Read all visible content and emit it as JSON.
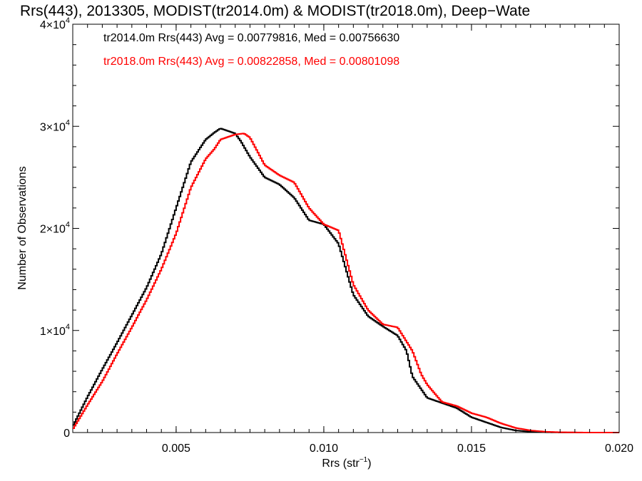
{
  "chart_data": {
    "type": "line",
    "title": "Rrs(443), 2013305, MODIST(tr2014.0m) & MODIST(tr2018.0m), Deep−Wate",
    "xlabel_main": "Rrs (str",
    "xlabel_sup": "−1",
    "xlabel_end": ")",
    "ylabel": "Number of Observations",
    "xlim": [
      0.0015,
      0.02
    ],
    "ylim": [
      0,
      40000
    ],
    "x_ticks": [
      {
        "value": 0.005,
        "label": "0.005"
      },
      {
        "value": 0.01,
        "label": "0.010"
      },
      {
        "value": 0.015,
        "label": "0.015"
      },
      {
        "value": 0.02,
        "label": "0.020"
      }
    ],
    "y_ticks": [
      {
        "value": 0,
        "mant": "0",
        "exp": ""
      },
      {
        "value": 10000,
        "mant": "1×10",
        "exp": "4"
      },
      {
        "value": 20000,
        "mant": "2×10",
        "exp": "4"
      },
      {
        "value": 30000,
        "mant": "3×10",
        "exp": "4"
      },
      {
        "value": 40000,
        "mant": "4×10",
        "exp": "4"
      }
    ],
    "annotations": [
      {
        "text": "tr2014.0m Rrs(443) Avg = 0.00779816, Med = 0.00756630",
        "color": "#000000"
      },
      {
        "text": "tr2018.0m Rrs(443) Avg = 0.00822858, Med = 0.00801098",
        "color": "#ff0000"
      }
    ],
    "series": [
      {
        "color": "#000000",
        "x": [
          0.0015,
          0.002,
          0.0025,
          0.003,
          0.0035,
          0.004,
          0.0045,
          0.005,
          0.0055,
          0.006,
          0.0063,
          0.0065,
          0.0068,
          0.007,
          0.0072,
          0.0075,
          0.008,
          0.0085,
          0.009,
          0.0095,
          0.01,
          0.0105,
          0.011,
          0.0115,
          0.012,
          0.0125,
          0.0128,
          0.013,
          0.0135,
          0.014,
          0.0145,
          0.015,
          0.0155,
          0.016,
          0.0165,
          0.017,
          0.0175,
          0.018,
          0.0185,
          0.019,
          0.02
        ],
        "y": [
          600,
          3500,
          6200,
          8800,
          11500,
          14200,
          17500,
          22000,
          26500,
          28700,
          29400,
          29800,
          29500,
          29300,
          28500,
          27000,
          25000,
          24300,
          23000,
          20800,
          20400,
          18500,
          13500,
          11400,
          10400,
          9500,
          8000,
          5500,
          3400,
          2900,
          2400,
          1500,
          1000,
          500,
          200,
          80,
          30,
          10,
          5,
          0,
          0
        ]
      },
      {
        "color": "#ff0000",
        "x": [
          0.0015,
          0.002,
          0.0025,
          0.003,
          0.0035,
          0.004,
          0.0045,
          0.005,
          0.0055,
          0.006,
          0.0063,
          0.0065,
          0.0068,
          0.007,
          0.0073,
          0.0075,
          0.008,
          0.0085,
          0.009,
          0.0095,
          0.01,
          0.0105,
          0.011,
          0.0115,
          0.012,
          0.0125,
          0.013,
          0.0133,
          0.0135,
          0.014,
          0.0145,
          0.015,
          0.0155,
          0.016,
          0.0165,
          0.017,
          0.0175,
          0.018,
          0.0185,
          0.019,
          0.02
        ],
        "y": [
          300,
          2700,
          5000,
          7700,
          10300,
          13000,
          16000,
          19500,
          24000,
          26800,
          27800,
          28700,
          29000,
          29200,
          29300,
          28900,
          26200,
          25200,
          24500,
          22000,
          20400,
          19800,
          14500,
          12000,
          10600,
          10300,
          8000,
          5700,
          4700,
          3000,
          2600,
          1900,
          1500,
          900,
          450,
          200,
          80,
          30,
          10,
          0,
          0
        ]
      }
    ]
  }
}
